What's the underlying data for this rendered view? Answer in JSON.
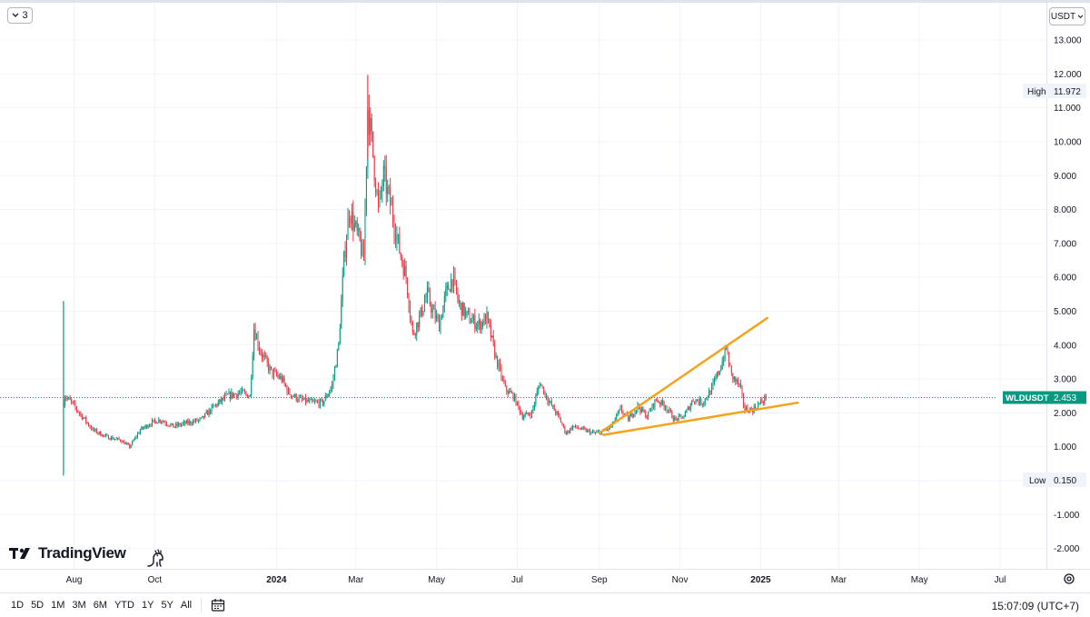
{
  "toolbar": {
    "collapse_count": "3",
    "currency": "USDT"
  },
  "price_labels": {
    "high_label": "High",
    "high_value": "11.972",
    "low_label": "Low",
    "low_value": "0.150",
    "symbol": "WLDUSDT",
    "last_value": "2.453",
    "last_price": 2.453
  },
  "branding": {
    "name": "TradingView"
  },
  "bottom_bar": {
    "ranges": [
      "1D",
      "5D",
      "1M",
      "3M",
      "6M",
      "YTD",
      "1Y",
      "5Y",
      "All"
    ],
    "time": "15:07:09 (UTC+7)"
  },
  "colors": {
    "up": "#089981",
    "down": "#f23645",
    "trendline": "#f7a21b",
    "last_price": "#089981",
    "grid": "#f0f3fa",
    "axis_text": "#131722"
  },
  "chart_data": {
    "type": "candlestick",
    "symbol": "WLDUSDT",
    "y_ticks": [
      "13.000",
      "12.000",
      "11.000",
      "10.000",
      "9.000",
      "8.000",
      "7.000",
      "6.000",
      "5.000",
      "4.000",
      "3.000",
      "2.000",
      "1.000",
      "0.000",
      "-1.000",
      "-2.000"
    ],
    "y_tick_values": [
      13,
      12,
      11,
      10,
      9,
      8,
      7,
      6,
      5,
      4,
      3,
      2,
      1,
      0,
      -1,
      -2
    ],
    "ylim": [
      -2.6,
      14.1
    ],
    "x_ticks": [
      {
        "label": "Aug",
        "date": "2023-08-01",
        "bold": false
      },
      {
        "label": "Oct",
        "date": "2023-10-01",
        "bold": false
      },
      {
        "label": "2024",
        "date": "2024-01-01",
        "bold": true
      },
      {
        "label": "Mar",
        "date": "2024-03-01",
        "bold": false
      },
      {
        "label": "May",
        "date": "2024-05-01",
        "bold": false
      },
      {
        "label": "Jul",
        "date": "2024-07-01",
        "bold": false
      },
      {
        "label": "Sep",
        "date": "2024-09-01",
        "bold": false
      },
      {
        "label": "Nov",
        "date": "2024-11-01",
        "bold": false
      },
      {
        "label": "2025",
        "date": "2025-01-01",
        "bold": true
      },
      {
        "label": "Mar",
        "date": "2025-03-01",
        "bold": false
      },
      {
        "label": "May",
        "date": "2025-05-01",
        "bold": false
      },
      {
        "label": "Jul",
        "date": "2025-07-01",
        "bold": false
      }
    ],
    "xlim": [
      "2023-06-06",
      "2025-08-05"
    ],
    "series": [
      {
        "name": "WLDUSDT",
        "path": [
          [
            "2023-07-24",
            2.3
          ],
          [
            "2023-07-25",
            2.5
          ],
          [
            "2023-07-30",
            2.3
          ],
          [
            "2023-08-05",
            2.0
          ],
          [
            "2023-08-15",
            1.5
          ],
          [
            "2023-08-25",
            1.3
          ],
          [
            "2023-09-05",
            1.2
          ],
          [
            "2023-09-12",
            1.0
          ],
          [
            "2023-09-20",
            1.5
          ],
          [
            "2023-09-28",
            1.7
          ],
          [
            "2023-10-05",
            1.8
          ],
          [
            "2023-10-15",
            1.6
          ],
          [
            "2023-10-25",
            1.7
          ],
          [
            "2023-11-05",
            1.8
          ],
          [
            "2023-11-15",
            2.2
          ],
          [
            "2023-11-25",
            2.5
          ],
          [
            "2023-12-05",
            2.6
          ],
          [
            "2023-12-12",
            2.5
          ],
          [
            "2023-12-15",
            4.5
          ],
          [
            "2023-12-20",
            3.8
          ],
          [
            "2023-12-28",
            3.2
          ],
          [
            "2024-01-05",
            3.0
          ],
          [
            "2024-01-10",
            2.6
          ],
          [
            "2024-01-18",
            2.4
          ],
          [
            "2024-01-28",
            2.3
          ],
          [
            "2024-02-05",
            2.3
          ],
          [
            "2024-02-12",
            2.8
          ],
          [
            "2024-02-17",
            4.0
          ],
          [
            "2024-02-21",
            6.5
          ],
          [
            "2024-02-25",
            8.0
          ],
          [
            "2024-02-29",
            7.5
          ],
          [
            "2024-03-04",
            7.0
          ],
          [
            "2024-03-07",
            6.5
          ],
          [
            "2024-03-10",
            11.0
          ],
          [
            "2024-03-13",
            10.0
          ],
          [
            "2024-03-18",
            8.0
          ],
          [
            "2024-03-22",
            9.0
          ],
          [
            "2024-03-28",
            8.0
          ],
          [
            "2024-04-03",
            6.8
          ],
          [
            "2024-04-08",
            6.0
          ],
          [
            "2024-04-13",
            4.3
          ],
          [
            "2024-04-18",
            4.8
          ],
          [
            "2024-04-24",
            5.5
          ],
          [
            "2024-04-28",
            5.0
          ],
          [
            "2024-05-03",
            4.6
          ],
          [
            "2024-05-08",
            5.5
          ],
          [
            "2024-05-13",
            6.0
          ],
          [
            "2024-05-18",
            5.2
          ],
          [
            "2024-05-25",
            4.8
          ],
          [
            "2024-06-02",
            4.6
          ],
          [
            "2024-06-08",
            4.8
          ],
          [
            "2024-06-15",
            3.6
          ],
          [
            "2024-06-22",
            2.7
          ],
          [
            "2024-06-28",
            2.5
          ],
          [
            "2024-07-05",
            1.9
          ],
          [
            "2024-07-12",
            2.0
          ],
          [
            "2024-07-18",
            2.9
          ],
          [
            "2024-07-24",
            2.4
          ],
          [
            "2024-08-01",
            1.9
          ],
          [
            "2024-08-07",
            1.4
          ],
          [
            "2024-08-12",
            1.6
          ],
          [
            "2024-08-20",
            1.5
          ],
          [
            "2024-08-28",
            1.4
          ],
          [
            "2024-09-04",
            1.45
          ],
          [
            "2024-09-10",
            1.6
          ],
          [
            "2024-09-17",
            2.1
          ],
          [
            "2024-09-23",
            1.8
          ],
          [
            "2024-09-30",
            2.2
          ],
          [
            "2024-10-07",
            1.9
          ],
          [
            "2024-10-14",
            2.4
          ],
          [
            "2024-10-21",
            2.2
          ],
          [
            "2024-10-28",
            1.8
          ],
          [
            "2024-11-04",
            1.9
          ],
          [
            "2024-11-11",
            2.4
          ],
          [
            "2024-11-18",
            2.3
          ],
          [
            "2024-11-25",
            2.7
          ],
          [
            "2024-12-02",
            3.4
          ],
          [
            "2024-12-06",
            3.9
          ],
          [
            "2024-12-10",
            3.1
          ],
          [
            "2024-12-16",
            2.8
          ],
          [
            "2024-12-20",
            2.1
          ],
          [
            "2024-12-26",
            2.1
          ],
          [
            "2025-01-01",
            2.3
          ],
          [
            "2025-01-05",
            2.453
          ]
        ]
      }
    ],
    "trendlines": [
      {
        "name": "upper",
        "from": [
          "2024-09-01",
          1.4
        ],
        "to": [
          "2025-01-06",
          4.8
        ]
      },
      {
        "name": "lower",
        "from": [
          "2024-09-04",
          1.35
        ],
        "to": [
          "2025-01-29",
          2.3
        ]
      }
    ]
  }
}
